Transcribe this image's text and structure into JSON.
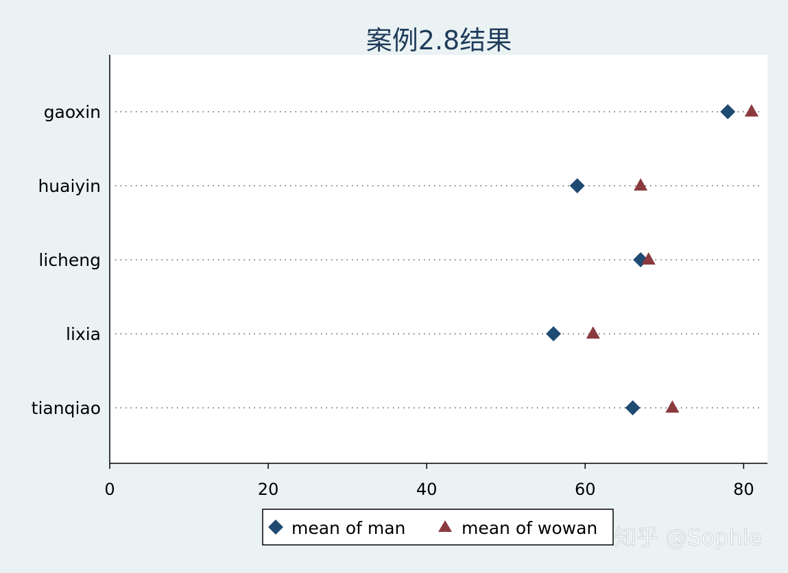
{
  "chart_data": {
    "type": "scatter",
    "title": "案例2.8结果",
    "categories": [
      "gaoxin",
      "huaiyin",
      "licheng",
      "lixia",
      "tianqiao"
    ],
    "series": [
      {
        "name": "mean of man",
        "marker": "diamond",
        "color": "#1f4a72",
        "values": [
          78,
          59,
          67,
          56,
          66
        ]
      },
      {
        "name": "mean of wowan",
        "marker": "triangle",
        "color": "#8b3a3f",
        "values": [
          81,
          67,
          68,
          61,
          71
        ]
      }
    ],
    "xlim": [
      0,
      83
    ],
    "xticks": [
      0,
      20,
      40,
      60,
      80
    ],
    "grid": "dotted lines per category",
    "legend_position": "bottom"
  },
  "watermark": "知乎 @Sophie"
}
